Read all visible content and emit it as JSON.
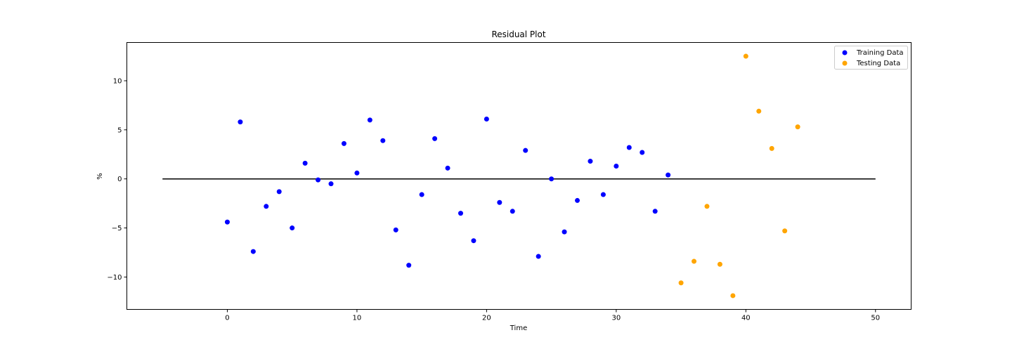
{
  "chart_data": {
    "type": "scatter",
    "title": "Residual Plot",
    "xlabel": "Time",
    "ylabel": "%",
    "xlim": [
      -7.75,
      52.75
    ],
    "ylim": [
      -13.3,
      13.9
    ],
    "xticks": [
      0,
      10,
      20,
      30,
      40,
      50
    ],
    "yticks": [
      -10,
      -5,
      0,
      5,
      10
    ],
    "grid": false,
    "legend_position": "top-right",
    "hline": {
      "y": 0,
      "xmin": -5,
      "xmax": 50,
      "color": "#000000"
    },
    "series": [
      {
        "name": "Training Data",
        "color": "#0000ff",
        "x": [
          0,
          1,
          2,
          3,
          4,
          5,
          6,
          7,
          8,
          9,
          10,
          11,
          12,
          13,
          14,
          15,
          16,
          17,
          18,
          19,
          20,
          21,
          22,
          23,
          24,
          25,
          26,
          27,
          28,
          29,
          30,
          31,
          32,
          33,
          34
        ],
        "y": [
          -4.4,
          5.8,
          -7.4,
          -2.8,
          -1.3,
          -5.0,
          1.6,
          -0.1,
          -0.5,
          3.6,
          0.6,
          6.0,
          3.9,
          -5.2,
          -8.8,
          -1.6,
          4.1,
          1.1,
          -3.5,
          -6.3,
          6.1,
          -2.4,
          -3.3,
          2.9,
          -7.9,
          0.0,
          -5.4,
          -2.2,
          1.8,
          -1.6,
          1.3,
          3.2,
          2.7,
          -3.3,
          0.4
        ]
      },
      {
        "name": "Testing Data",
        "color": "#ffa500",
        "x": [
          35,
          36,
          37,
          38,
          39,
          40,
          41,
          42,
          43,
          44
        ],
        "y": [
          -10.6,
          -8.4,
          -2.8,
          -8.7,
          -11.9,
          12.5,
          6.9,
          3.1,
          -5.3,
          5.3
        ]
      }
    ]
  }
}
